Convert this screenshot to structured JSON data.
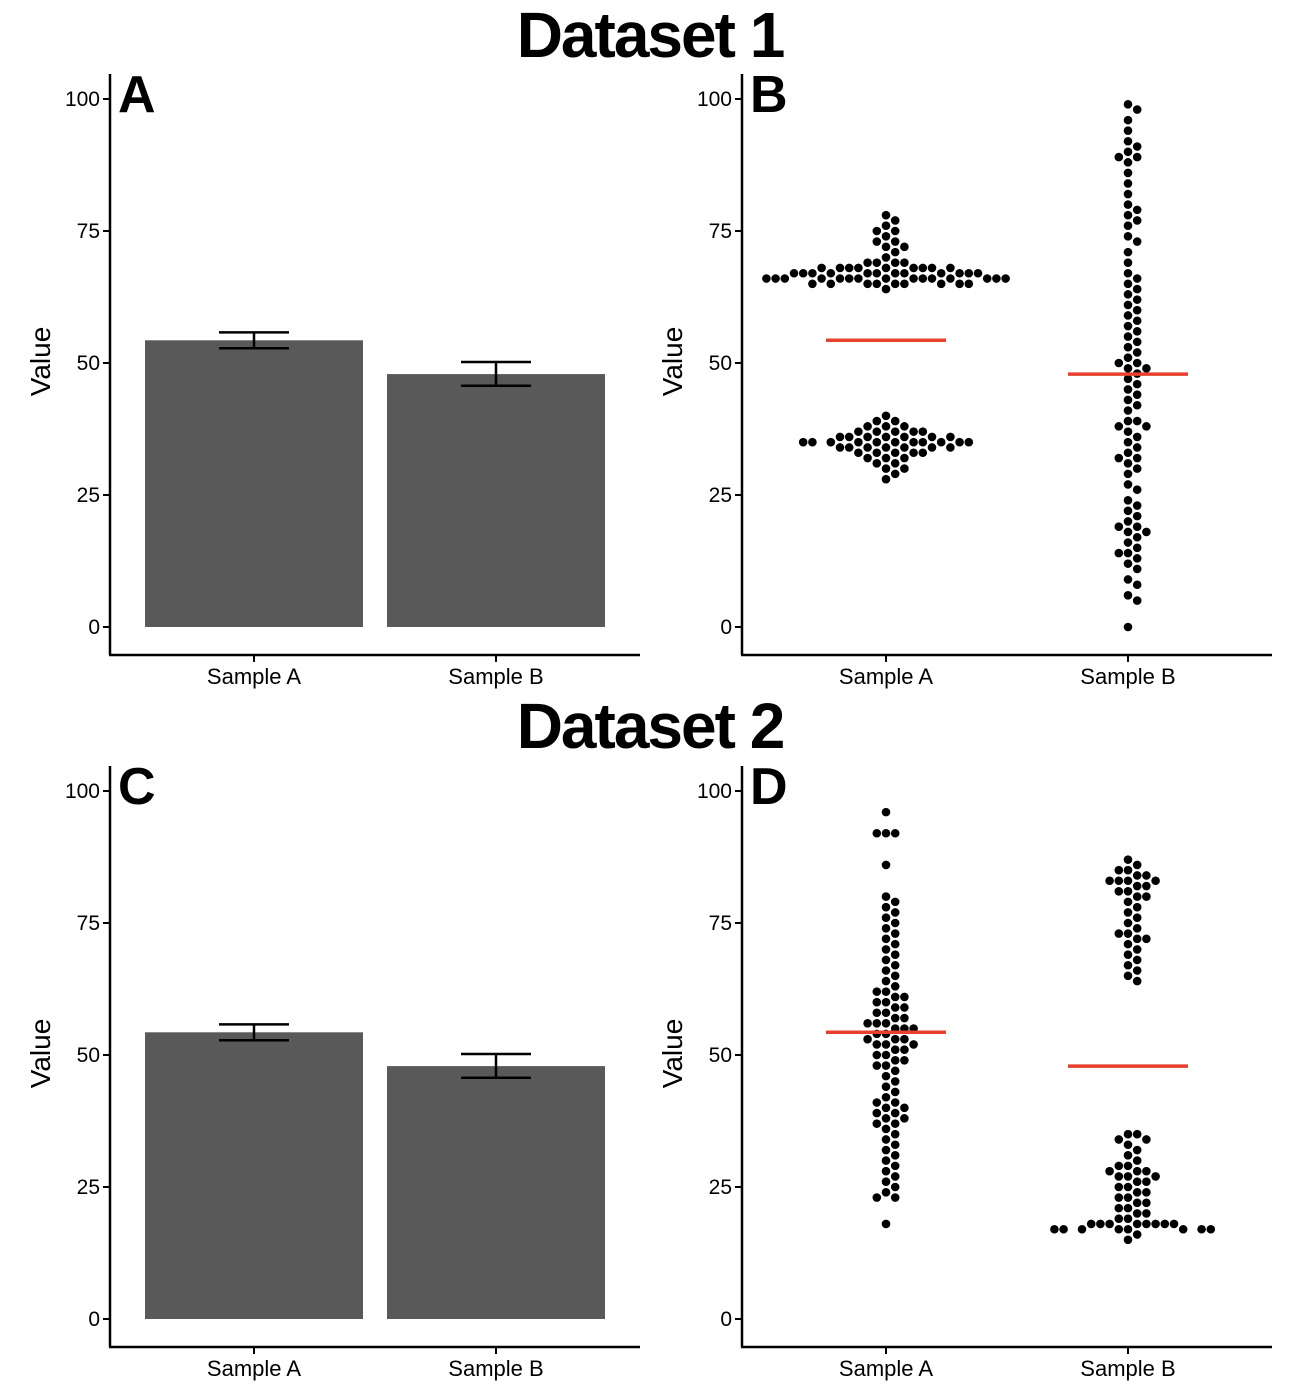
{
  "titles": [
    "Dataset 1",
    "Dataset 2"
  ],
  "colors": {
    "bar": "#595959",
    "dot": "#000000",
    "mean_line": "#e8402e",
    "axis": "#000000"
  },
  "chart_data": [
    {
      "panel": "A",
      "type": "bar",
      "dataset": "Dataset 1",
      "categories": [
        "Sample A",
        "Sample B"
      ],
      "values": [
        54.3,
        47.9
      ],
      "error_low": [
        52.8,
        45.7
      ],
      "error_high": [
        55.8,
        50.2
      ],
      "xlabel": "",
      "ylabel": "Value",
      "ylim": [
        0,
        100
      ],
      "yticks": [
        0,
        25,
        50,
        75,
        100
      ],
      "grid": false
    },
    {
      "panel": "B",
      "type": "scatter",
      "dataset": "Dataset 1",
      "style": "beeswarm",
      "categories": [
        "Sample A",
        "Sample B"
      ],
      "series": [
        {
          "category": "Sample A",
          "mean": 54.3,
          "values": [
            28,
            29,
            30,
            30,
            31,
            31,
            32,
            32,
            32,
            33,
            33,
            33,
            33,
            33,
            34,
            34,
            34,
            34,
            34,
            34,
            34,
            35,
            35,
            35,
            35,
            35,
            35,
            35,
            35,
            35,
            35,
            35,
            36,
            36,
            36,
            36,
            36,
            36,
            36,
            37,
            37,
            37,
            37,
            37,
            38,
            38,
            38,
            39,
            39,
            40,
            64,
            65,
            65,
            65,
            65,
            65,
            65,
            65,
            65,
            65,
            66,
            66,
            66,
            66,
            66,
            66,
            66,
            66,
            66,
            66,
            66,
            66,
            66,
            66,
            66,
            67,
            67,
            67,
            67,
            67,
            67,
            67,
            67,
            67,
            67,
            67,
            67,
            68,
            68,
            68,
            68,
            68,
            68,
            68,
            68,
            68,
            69,
            69,
            69,
            69,
            70,
            71,
            72,
            72,
            73,
            73,
            74,
            75,
            75,
            76,
            77,
            78
          ]
        },
        {
          "category": "Sample B",
          "mean": 47.9,
          "values": [
            0,
            5,
            6,
            8,
            9,
            11,
            12,
            13,
            14,
            14,
            15,
            16,
            17,
            18,
            18,
            19,
            19,
            20,
            21,
            22,
            23,
            24,
            26,
            27,
            29,
            30,
            31,
            32,
            32,
            33,
            34,
            35,
            36,
            37,
            38,
            38,
            39,
            39,
            41,
            42,
            43,
            44,
            45,
            46,
            47,
            48,
            49,
            49,
            50,
            50,
            51,
            52,
            53,
            54,
            55,
            56,
            57,
            58,
            59,
            60,
            61,
            62,
            63,
            64,
            65,
            66,
            67,
            69,
            71,
            73,
            74,
            76,
            77,
            78,
            79,
            80,
            82,
            84,
            86,
            88,
            89,
            89,
            90,
            91,
            92,
            94,
            96,
            98,
            99
          ]
        }
      ],
      "xlabel": "",
      "ylabel": "Value",
      "ylim": [
        0,
        100
      ],
      "yticks": [
        0,
        25,
        50,
        75,
        100
      ],
      "grid": false
    },
    {
      "panel": "C",
      "type": "bar",
      "dataset": "Dataset 2",
      "categories": [
        "Sample A",
        "Sample B"
      ],
      "values": [
        54.3,
        47.9
      ],
      "error_low": [
        52.8,
        45.7
      ],
      "error_high": [
        55.8,
        50.2
      ],
      "xlabel": "",
      "ylabel": "Value",
      "ylim": [
        0,
        100
      ],
      "yticks": [
        0,
        25,
        50,
        75,
        100
      ],
      "grid": false
    },
    {
      "panel": "D",
      "type": "scatter",
      "dataset": "Dataset 2",
      "style": "beeswarm",
      "categories": [
        "Sample A",
        "Sample B"
      ],
      "series": [
        {
          "category": "Sample A",
          "mean": 54.3,
          "values": [
            18,
            23,
            23,
            24,
            25,
            26,
            27,
            28,
            29,
            30,
            31,
            32,
            33,
            34,
            35,
            36,
            37,
            37,
            38,
            38,
            39,
            39,
            40,
            40,
            41,
            41,
            42,
            43,
            44,
            45,
            46,
            47,
            48,
            48,
            49,
            49,
            50,
            50,
            51,
            51,
            52,
            52,
            52,
            53,
            53,
            53,
            54,
            54,
            55,
            55,
            55,
            56,
            56,
            56,
            57,
            57,
            58,
            58,
            59,
            59,
            60,
            60,
            61,
            61,
            62,
            62,
            63,
            64,
            65,
            66,
            67,
            68,
            69,
            70,
            71,
            72,
            73,
            74,
            75,
            76,
            77,
            78,
            79,
            80,
            86,
            92,
            92,
            92,
            96
          ]
        },
        {
          "category": "Sample B",
          "mean": 47.9,
          "values": [
            15,
            16,
            17,
            17,
            17,
            17,
            17,
            17,
            17,
            17,
            18,
            18,
            18,
            18,
            18,
            18,
            18,
            18,
            19,
            19,
            20,
            20,
            21,
            21,
            22,
            22,
            23,
            23,
            24,
            24,
            25,
            25,
            26,
            26,
            27,
            27,
            27,
            28,
            28,
            28,
            29,
            29,
            30,
            31,
            32,
            33,
            34,
            34,
            35,
            35,
            64,
            65,
            66,
            67,
            68,
            69,
            70,
            71,
            72,
            72,
            73,
            73,
            74,
            75,
            76,
            77,
            78,
            79,
            80,
            80,
            81,
            81,
            82,
            82,
            83,
            83,
            83,
            83,
            84,
            84,
            85,
            85,
            86,
            87
          ]
        }
      ],
      "xlabel": "",
      "ylabel": "Value",
      "ylim": [
        0,
        100
      ],
      "yticks": [
        0,
        25,
        50,
        75,
        100
      ],
      "grid": false
    }
  ]
}
